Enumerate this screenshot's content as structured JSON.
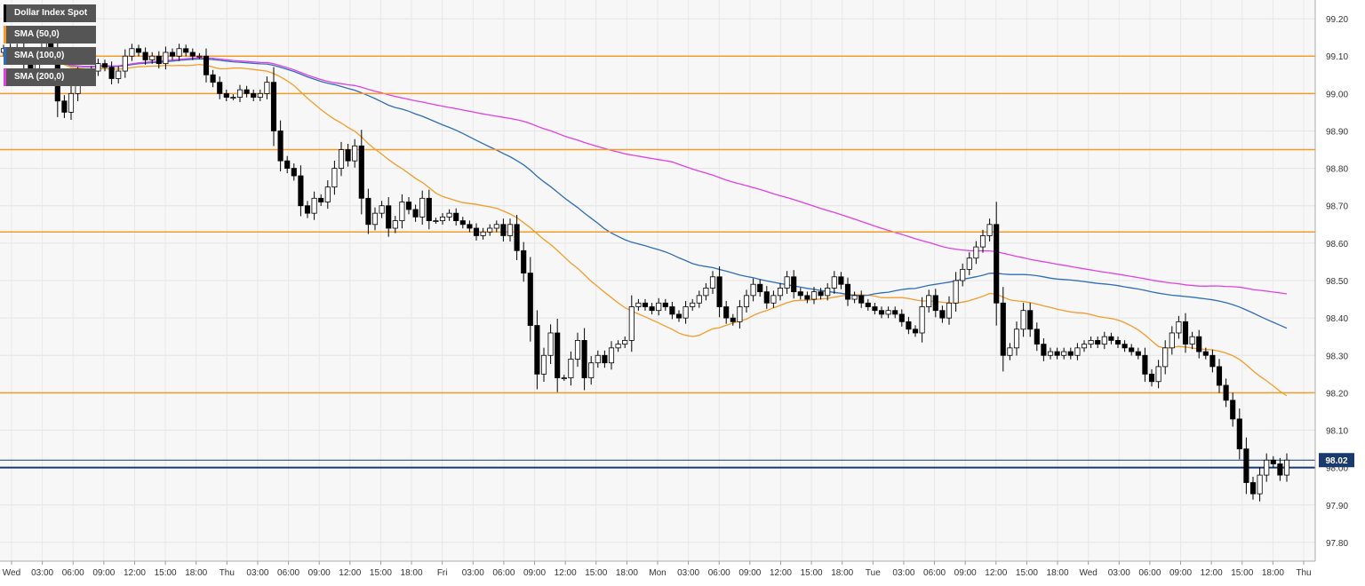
{
  "chart_data": {
    "type": "candlestick",
    "title": "Dollar Index Spot",
    "legend": [
      {
        "name": "Dollar Index Spot",
        "color": "#000000"
      },
      {
        "name": "SMA (50,0)",
        "color": "#f39c2a"
      },
      {
        "name": "SMA (100,0)",
        "color": "#2f6db5"
      },
      {
        "name": "SMA (200,0)",
        "color": "#e040e0"
      }
    ],
    "ylim": [
      97.75,
      99.25
    ],
    "y_ticks": [
      "99.20",
      "99.10",
      "99.00",
      "98.90",
      "98.80",
      "98.70",
      "98.60",
      "98.50",
      "98.40",
      "98.30",
      "98.20",
      "98.10",
      "98.00",
      "97.90",
      "97.80"
    ],
    "x_ticks": [
      "Wed",
      "03:00",
      "06:00",
      "09:00",
      "12:00",
      "15:00",
      "18:00",
      "Thu",
      "03:00",
      "06:00",
      "09:00",
      "12:00",
      "15:00",
      "18:00",
      "Fri",
      "03:00",
      "06:00",
      "09:00",
      "12:00",
      "15:00",
      "18:00",
      "Mon",
      "03:00",
      "06:00",
      "09:00",
      "12:00",
      "15:00",
      "18:00",
      "Tue",
      "03:00",
      "06:00",
      "09:00",
      "12:00",
      "15:00",
      "18:00",
      "Wed",
      "03:00",
      "06:00",
      "09:00",
      "12:00",
      "15:00",
      "18:00",
      "Thu"
    ],
    "horizontal_levels": [
      99.1,
      99.0,
      98.85,
      98.63,
      98.2
    ],
    "level_color": "#f39c2a",
    "reference_level": 98.0,
    "current_price": "98.02",
    "current_price_value": 98.02,
    "price_tag_color": "#1a3a6e",
    "grid": true,
    "candles": {
      "close": [
        99.12,
        99.1,
        99.12,
        99.08,
        99.05,
        99.1,
        99.15,
        99.12,
        98.98,
        98.95,
        99.0,
        99.05,
        99.04,
        99.06,
        99.08,
        99.07,
        99.04,
        99.06,
        99.1,
        99.12,
        99.11,
        99.09,
        99.1,
        99.08,
        99.11,
        99.1,
        99.12,
        99.11,
        99.1,
        99.1,
        99.05,
        99.03,
        99.0,
        98.99,
        98.99,
        99.01,
        99.0,
        98.99,
        99.0,
        99.03,
        98.9,
        98.82,
        98.8,
        98.78,
        98.7,
        98.68,
        98.72,
        98.71,
        98.75,
        98.8,
        98.85,
        98.82,
        98.86,
        98.72,
        98.65,
        98.68,
        98.7,
        98.64,
        98.66,
        98.71,
        98.69,
        98.67,
        98.72,
        98.66,
        98.66,
        98.67,
        98.68,
        98.66,
        98.65,
        98.64,
        98.62,
        98.63,
        98.64,
        98.65,
        98.62,
        98.65,
        98.58,
        98.52,
        98.38,
        98.25,
        98.3,
        98.36,
        98.24,
        98.24,
        98.29,
        98.34,
        98.24,
        98.28,
        98.3,
        98.28,
        98.32,
        98.33,
        98.34,
        98.43,
        98.44,
        98.43,
        98.42,
        98.44,
        98.43,
        98.41,
        98.4,
        98.43,
        98.44,
        98.46,
        98.48,
        98.51,
        98.43,
        98.4,
        98.39,
        98.43,
        98.46,
        98.49,
        98.47,
        98.44,
        98.46,
        98.48,
        98.51,
        98.47,
        98.46,
        98.45,
        98.47,
        98.46,
        98.48,
        98.51,
        98.49,
        98.45,
        98.46,
        98.44,
        98.43,
        98.42,
        98.41,
        98.42,
        98.41,
        98.39,
        98.37,
        98.36,
        98.43,
        98.46,
        98.42,
        98.4,
        98.44,
        98.5,
        98.53,
        98.56,
        98.59,
        98.62,
        98.65,
        98.44,
        98.3,
        98.32,
        98.37,
        98.42,
        98.37,
        98.33,
        98.3,
        98.31,
        98.3,
        98.31,
        98.3,
        98.32,
        98.33,
        98.34,
        98.33,
        98.35,
        98.34,
        98.33,
        98.32,
        98.31,
        98.3,
        98.25,
        98.23,
        98.27,
        98.32,
        98.36,
        98.39,
        98.33,
        98.35,
        98.31,
        98.3,
        98.27,
        98.22,
        98.18,
        98.13,
        98.05,
        97.96,
        97.93,
        97.98,
        98.02,
        98.01,
        97.98,
        98.02
      ]
    }
  }
}
